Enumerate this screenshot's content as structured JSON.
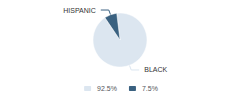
{
  "chart_data": {
    "type": "pie",
    "categories": [
      "BLACK",
      "HISPANIC"
    ],
    "values": [
      92.5,
      7.5
    ],
    "value_labels": [
      "92.5%",
      "7.5%"
    ],
    "colors": [
      "#dce6f0",
      "#3a6180"
    ],
    "legend": "bottom"
  }
}
